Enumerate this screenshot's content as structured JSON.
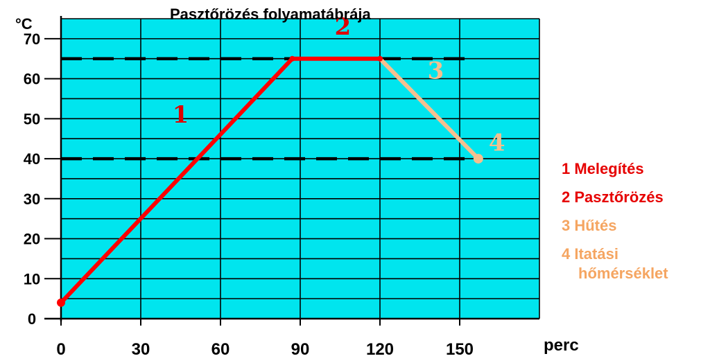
{
  "title": "Pasztőrözés folyamatábrája",
  "colors": {
    "background": "#00E5EE",
    "grid": "#000000",
    "heating": "#FF0000",
    "pasteurizing": "#FF0000",
    "cooling": "#F5C08F",
    "legend_orange": "#F5A561",
    "dashed": "#000000"
  },
  "chart_data": {
    "type": "line",
    "title": "Pasztőrözés folyamatábrája",
    "xlabel": "perc",
    "ylabel": "°C",
    "xlim": [
      0,
      180
    ],
    "ylim": [
      0,
      75
    ],
    "x_ticks": [
      0,
      30,
      60,
      90,
      120,
      150
    ],
    "y_ticks": [
      0,
      10,
      20,
      30,
      40,
      50,
      60,
      70
    ],
    "grid": true,
    "reference_lines": [
      65,
      40
    ],
    "series": [
      {
        "segment_label": "1",
        "color": "#FF0000",
        "points": [
          [
            0,
            4
          ],
          [
            87,
            65
          ]
        ]
      },
      {
        "segment_label": "2",
        "color": "#FF0000",
        "points": [
          [
            87,
            65
          ],
          [
            120,
            65
          ]
        ]
      },
      {
        "segment_label": "3",
        "color": "#F5C08F",
        "points": [
          [
            120,
            65
          ],
          [
            157,
            40
          ]
        ]
      }
    ],
    "point_labels": [
      {
        "text": "1",
        "x": 45,
        "y": 49,
        "color": "#E00000"
      },
      {
        "text": "2",
        "x": 106,
        "y": 71,
        "color": "#E00000"
      },
      {
        "text": "3",
        "x": 141,
        "y": 60,
        "color": "#F5C08F"
      },
      {
        "text": "4",
        "x": 164,
        "y": 42,
        "color": "#F5C08F"
      }
    ]
  },
  "legend": [
    {
      "text": "1 Melegítés",
      "color": "#E60000"
    },
    {
      "text": "2 Pasztőrözés",
      "color": "#E60000"
    },
    {
      "text": "3 Hűtés",
      "color": "#F5A561"
    },
    {
      "text": "4 Itatási",
      "color": "#F5A561",
      "text2": "hőmérséklet"
    }
  ]
}
